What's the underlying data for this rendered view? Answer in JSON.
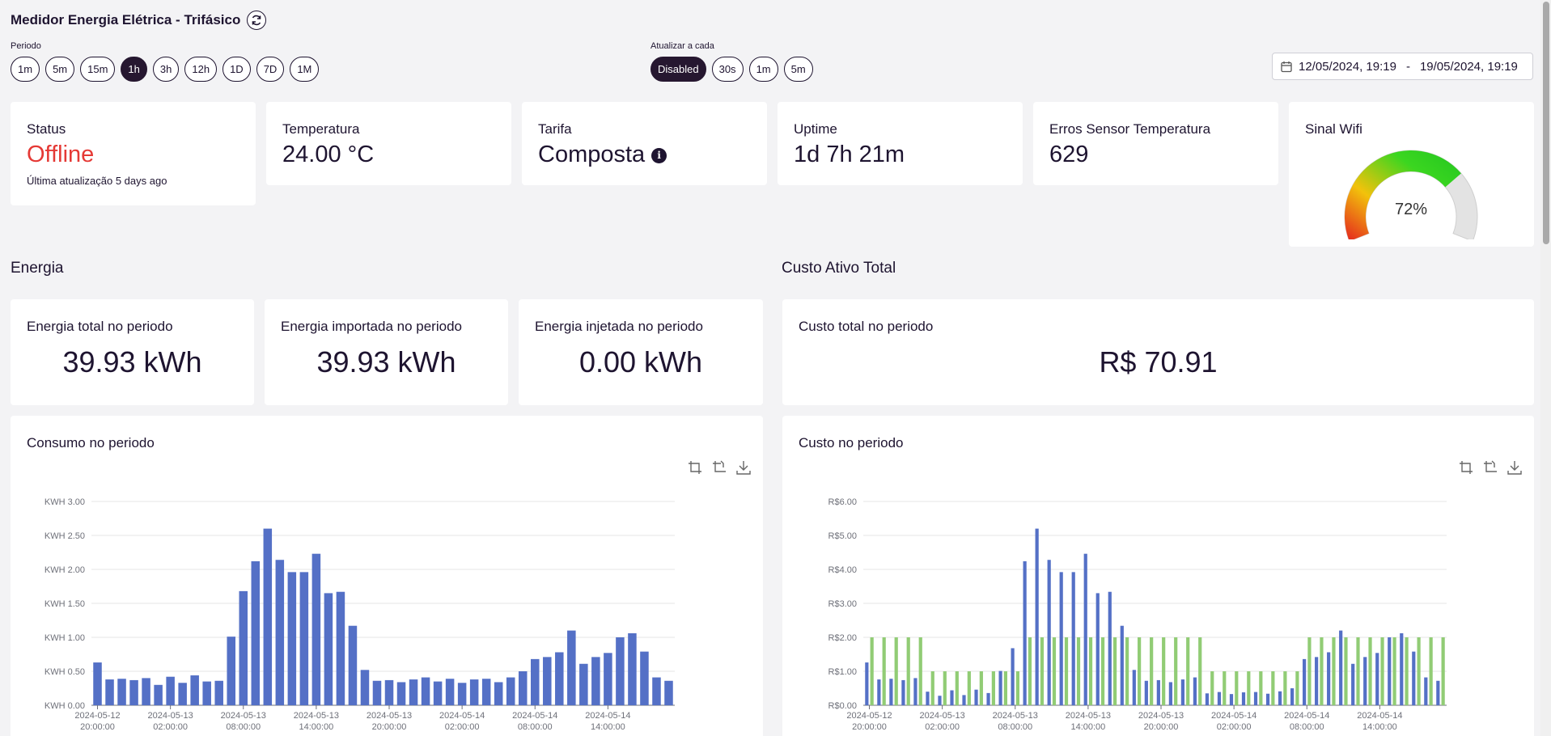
{
  "header": {
    "title": "Medidor Energia Elétrica - Trifásico",
    "refresh_icon": "refresh-icon"
  },
  "period": {
    "label": "Periodo",
    "options": [
      "1m",
      "5m",
      "15m",
      "1h",
      "3h",
      "12h",
      "1D",
      "7D",
      "1M"
    ],
    "selected": "1h"
  },
  "refresh": {
    "label": "Atualizar a cada",
    "options": [
      "Disabled",
      "30s",
      "1m",
      "5m"
    ],
    "selected": "Disabled"
  },
  "date_range": {
    "start": "12/05/2024, 19:19",
    "separator": "-",
    "end": "19/05/2024, 19:19",
    "icon": "calendar-icon"
  },
  "status": {
    "label": "Status",
    "value": "Offline",
    "last_update": "Última atualização 5 days ago",
    "color": "#e53935"
  },
  "temperature": {
    "label": "Temperatura",
    "value": "24.00 °C"
  },
  "tariff": {
    "label": "Tarifa",
    "value": "Composta",
    "info_icon": "info-icon"
  },
  "uptime": {
    "label": "Uptime",
    "value": "1d 7h 21m"
  },
  "sensor_errors": {
    "label": "Erros Sensor Temperatura",
    "value": "629"
  },
  "wifi": {
    "label": "Sinal Wifi",
    "value": "72%",
    "percent": 72
  },
  "energy": {
    "section_title": "Energia",
    "total": {
      "label": "Energia total no periodo",
      "value": "39.93 kWh"
    },
    "imported": {
      "label": "Energia importada no periodo",
      "value": "39.93 kWh"
    },
    "injected": {
      "label": "Energia injetada no periodo",
      "value": "0.00 kWh"
    }
  },
  "cost": {
    "section_title": "Custo Ativo Total",
    "total": {
      "label": "Custo total no periodo",
      "value": "R$ 70.91"
    }
  },
  "consumption_chart": {
    "title": "Consumo no periodo",
    "tools": [
      "crop-icon",
      "reset-zoom-icon",
      "download-icon"
    ]
  },
  "cost_chart": {
    "title": "Custo no periodo",
    "tools": [
      "crop-icon",
      "reset-zoom-icon",
      "download-icon"
    ]
  },
  "chart_data": [
    {
      "type": "bar",
      "title": "Consumo no periodo",
      "ylim": [
        0,
        3
      ],
      "y_ticks": [
        "KWH 0.00",
        "KWH 0.50",
        "KWH 1.00",
        "KWH 1.50",
        "KWH 2.00",
        "KWH 2.50",
        "KWH 3.00"
      ],
      "x_ticks": [
        [
          "2024-05-12",
          "20:00:00"
        ],
        [
          "2024-05-13",
          "02:00:00"
        ],
        [
          "2024-05-13",
          "08:00:00"
        ],
        [
          "2024-05-13",
          "14:00:00"
        ],
        [
          "2024-05-13",
          "20:00:00"
        ],
        [
          "2024-05-14",
          "02:00:00"
        ],
        [
          "2024-05-14",
          "08:00:00"
        ],
        [
          "2024-05-14",
          "14:00:00"
        ]
      ],
      "color": "#5470c6",
      "series": [
        {
          "values": [
            0.63,
            0.38,
            0.39,
            0.37,
            0.4,
            0.3,
            0.42,
            0.33,
            0.44,
            0.35,
            0.36,
            1.01,
            1.68,
            2.12,
            2.6,
            2.14,
            1.96,
            1.96,
            2.23,
            1.65,
            1.67,
            1.17,
            0.52,
            0.36,
            0.37,
            0.34,
            0.38,
            0.41,
            0.35,
            0.39,
            0.33,
            0.38,
            0.39,
            0.34,
            0.41,
            0.5,
            0.68,
            0.71,
            0.78,
            1.1,
            0.61,
            0.71,
            0.77,
            1.0,
            1.06,
            0.79,
            0.41,
            0.36
          ]
        }
      ]
    },
    {
      "type": "bar",
      "title": "Custo no periodo",
      "ylim": [
        0,
        6
      ],
      "y_ticks": [
        "R$0.00",
        "R$1.00",
        "R$2.00",
        "R$3.00",
        "R$4.00",
        "R$5.00",
        "R$6.00"
      ],
      "x_ticks": [
        [
          "2024-05-12",
          "20:00:00"
        ],
        [
          "2024-05-13",
          "02:00:00"
        ],
        [
          "2024-05-13",
          "08:00:00"
        ],
        [
          "2024-05-13",
          "14:00:00"
        ],
        [
          "2024-05-13",
          "20:00:00"
        ],
        [
          "2024-05-14",
          "02:00:00"
        ],
        [
          "2024-05-14",
          "08:00:00"
        ],
        [
          "2024-05-14",
          "14:00:00"
        ]
      ],
      "series": [
        {
          "color": "#5470c6",
          "values": [
            1.26,
            0.76,
            0.78,
            0.74,
            0.8,
            0.4,
            0.28,
            0.44,
            0.3,
            0.46,
            0.36,
            1.01,
            1.68,
            4.24,
            5.2,
            4.28,
            3.92,
            3.92,
            4.46,
            3.3,
            3.34,
            2.34,
            1.04,
            0.72,
            0.74,
            0.68,
            0.76,
            0.82,
            0.35,
            0.39,
            0.33,
            0.38,
            0.39,
            0.34,
            0.41,
            0.5,
            1.36,
            1.42,
            1.56,
            2.2,
            1.22,
            1.42,
            1.54,
            2.0,
            2.12,
            1.58,
            0.82,
            0.72
          ]
        },
        {
          "color": "#91cc75",
          "values": [
            2.0,
            2.0,
            2.0,
            2.0,
            2.0,
            1.0,
            1.0,
            1.0,
            1.0,
            1.0,
            1.0,
            1.0,
            1.0,
            2.0,
            2.0,
            2.0,
            2.0,
            2.0,
            2.0,
            2.0,
            2.0,
            2.0,
            2.0,
            2.0,
            2.0,
            2.0,
            2.0,
            2.0,
            1.0,
            1.0,
            1.0,
            1.0,
            1.0,
            1.0,
            1.0,
            1.0,
            2.0,
            2.0,
            2.0,
            2.0,
            2.0,
            2.0,
            2.0,
            2.0,
            2.0,
            2.0,
            2.0,
            2.0
          ]
        }
      ]
    }
  ]
}
